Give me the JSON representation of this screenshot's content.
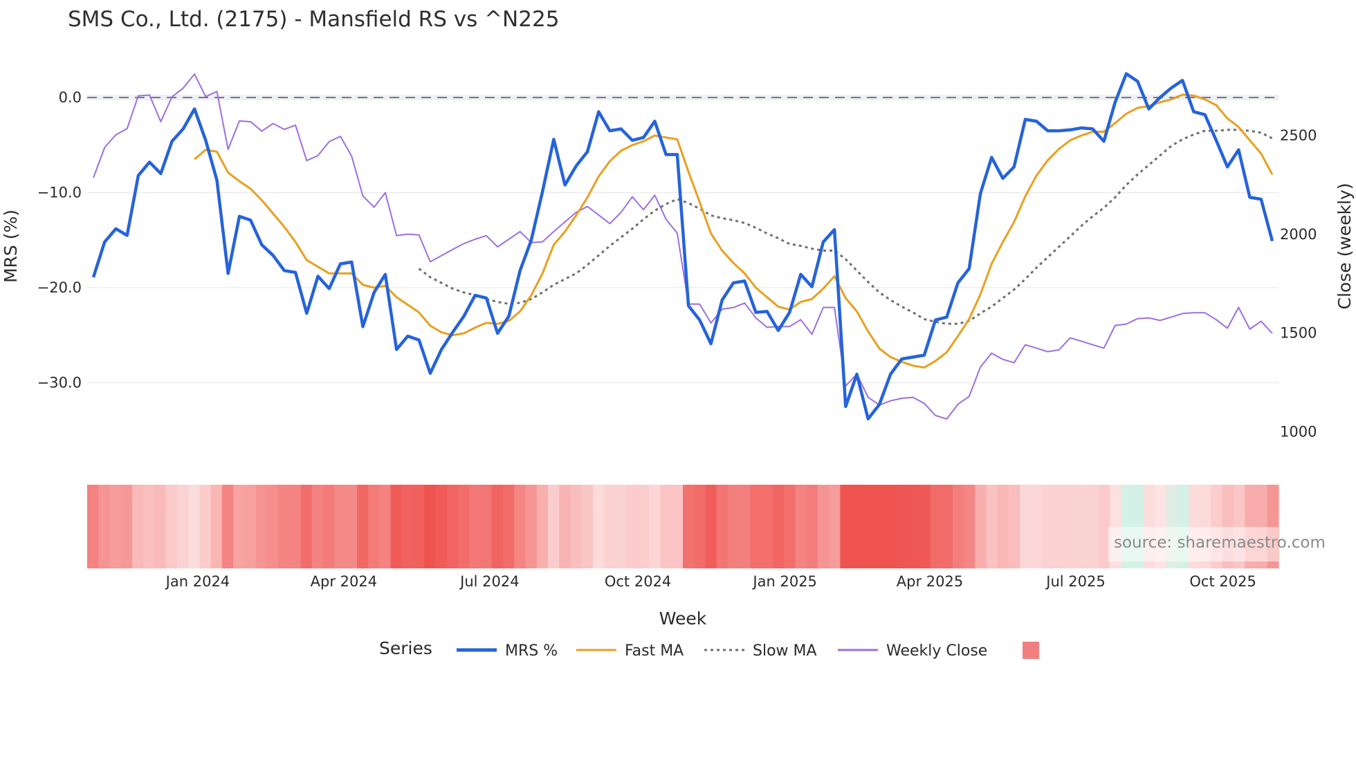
{
  "chart_data": {
    "type": "line",
    "title": "SMS Co., Ltd. (2175) - Mansfield RS vs ^N225",
    "xlabel": "Week",
    "ylabel": "MRS (%)",
    "y2label": "Close (weekly)",
    "ylim": [
      -36,
      4.5
    ],
    "y2lim": [
      950,
      2900
    ],
    "yticks": [
      {
        "v": 0,
        "label": "0.0"
      },
      {
        "v": -10,
        "label": "−10.0"
      },
      {
        "v": -20,
        "label": "−20.0"
      },
      {
        "v": -30,
        "label": "−30.0"
      }
    ],
    "y2ticks": [
      {
        "v": 2500,
        "label": "2500"
      },
      {
        "v": 2000,
        "label": "2000"
      },
      {
        "v": 1500,
        "label": "1500"
      },
      {
        "v": 1000,
        "label": "1000"
      }
    ],
    "xticks": [
      {
        "week": 9.3,
        "label": "Jan 2024"
      },
      {
        "week": 22.3,
        "label": "Apr 2024"
      },
      {
        "week": 35.3,
        "label": "Jul 2024"
      },
      {
        "week": 48.5,
        "label": "Oct 2024"
      },
      {
        "week": 61.6,
        "label": "Jan 2025"
      },
      {
        "week": 74.5,
        "label": "Apr 2025"
      },
      {
        "week": 87.5,
        "label": "Jul 2025"
      },
      {
        "week": 100.6,
        "label": "Oct 2025"
      }
    ],
    "reference_line": 0,
    "legend": {
      "title": "Series",
      "placement": "bottom"
    },
    "source": "source: sharemaestro.com",
    "series": [
      {
        "name": "MRS %",
        "color": "#2563d9",
        "style": "solid",
        "axis": "left",
        "start_week": 0,
        "values": [
          -18.9,
          -15.2,
          -13.8,
          -14.5,
          -8.2,
          -6.8,
          -8.0,
          -4.6,
          -3.3,
          -1.2,
          -4.5,
          -8.7,
          -18.5,
          -12.5,
          -12.9,
          -15.5,
          -16.6,
          -18.2,
          -18.4,
          -22.7,
          -18.8,
          -20.1,
          -17.5,
          -17.3,
          -24.1,
          -20.5,
          -18.6,
          -26.5,
          -25.1,
          -25.5,
          -29.0,
          -26.5,
          -24.7,
          -23.0,
          -20.8,
          -21.1,
          -24.8,
          -23.0,
          -18.2,
          -15.0,
          -9.9,
          -4.4,
          -9.2,
          -7.2,
          -5.7,
          -1.5,
          -3.5,
          -3.3,
          -4.5,
          -4.2,
          -2.5,
          -6.0,
          -6.0,
          -21.9,
          -23.4,
          -25.9,
          -21.3,
          -19.5,
          -19.3,
          -22.6,
          -22.5,
          -24.5,
          -22.6,
          -18.6,
          -19.9,
          -15.2,
          -13.9,
          -32.5,
          -29.1,
          -33.8,
          -32.3,
          -29.1,
          -27.5,
          -27.3,
          -27.1,
          -23.4,
          -23.1,
          -19.5,
          -18.0,
          -10.1,
          -6.3,
          -8.5,
          -7.3,
          -2.3,
          -2.5,
          -3.5,
          -3.5,
          -3.4,
          -3.2,
          -3.3,
          -4.6,
          -0.5,
          2.5,
          1.7,
          -1.2,
          0.0,
          1.0,
          1.8,
          -1.5,
          -1.8,
          -4.5,
          -7.3,
          -5.5,
          -10.5,
          -10.7,
          -15.1
        ]
      },
      {
        "name": "Fast MA",
        "color": "#e8a020",
        "style": "solid",
        "axis": "left",
        "start_week": 9,
        "values": [
          -6.5,
          -5.5,
          -5.7,
          -7.9,
          -8.8,
          -9.6,
          -10.8,
          -12.2,
          -13.6,
          -15.2,
          -17.1,
          -17.8,
          -18.5,
          -18.5,
          -18.5,
          -19.7,
          -20.0,
          -19.8,
          -21.0,
          -21.8,
          -22.6,
          -24.0,
          -24.7,
          -25.0,
          -24.8,
          -24.2,
          -23.7,
          -23.8,
          -23.5,
          -22.5,
          -20.8,
          -18.5,
          -15.5,
          -14.1,
          -12.4,
          -10.5,
          -8.3,
          -6.7,
          -5.6,
          -5.0,
          -4.6,
          -4.0,
          -4.2,
          -4.4,
          -7.8,
          -11.0,
          -14.3,
          -16.1,
          -17.4,
          -18.5,
          -20.0,
          -21.0,
          -22.0,
          -22.3,
          -21.5,
          -21.2,
          -20.1,
          -18.8,
          -21.1,
          -22.5,
          -24.6,
          -26.4,
          -27.3,
          -27.8,
          -28.2,
          -28.4,
          -27.7,
          -26.8,
          -25.1,
          -23.3,
          -20.7,
          -17.5,
          -15.2,
          -13.1,
          -10.4,
          -8.2,
          -6.6,
          -5.4,
          -4.5,
          -4.0,
          -3.6,
          -3.6,
          -2.7,
          -1.7,
          -1.1,
          -0.9,
          -0.5,
          -0.2,
          0.3,
          0.2,
          -0.2,
          -0.8,
          -2.2,
          -3.1,
          -4.5,
          -5.9,
          -8.1
        ]
      },
      {
        "name": "Slow MA",
        "color": "#6e6e6e",
        "style": "dot",
        "axis": "left",
        "start_week": 29,
        "values": [
          -18.0,
          -18.9,
          -19.5,
          -20.1,
          -20.5,
          -20.8,
          -21.2,
          -21.5,
          -21.7,
          -21.6,
          -21.2,
          -20.5,
          -19.7,
          -19.1,
          -18.5,
          -17.6,
          -16.6,
          -15.6,
          -14.7,
          -13.8,
          -12.8,
          -11.9,
          -11.2,
          -10.7,
          -11.1,
          -11.7,
          -12.4,
          -12.7,
          -12.9,
          -13.2,
          -13.7,
          -14.3,
          -14.8,
          -15.4,
          -15.6,
          -15.9,
          -16.1,
          -16.1,
          -17.0,
          -18.2,
          -19.4,
          -20.5,
          -21.3,
          -22.0,
          -22.6,
          -23.3,
          -23.6,
          -23.8,
          -23.8,
          -23.5,
          -22.7,
          -22.0,
          -21.1,
          -20.2,
          -19.1,
          -17.9,
          -16.8,
          -15.7,
          -14.6,
          -13.5,
          -12.5,
          -11.6,
          -10.5,
          -9.2,
          -8.1,
          -7.1,
          -6.1,
          -5.1,
          -4.4,
          -3.9,
          -3.5,
          -3.5,
          -3.4,
          -3.4,
          -3.5,
          -3.7,
          -4.3
        ]
      },
      {
        "name": "Weekly Close",
        "color": "#9b6fe0",
        "style": "solid",
        "axis": "right",
        "start_week": 0,
        "values": [
          2286,
          2439,
          2504,
          2535,
          2701,
          2705,
          2570,
          2696,
          2740,
          2811,
          2697,
          2723,
          2430,
          2574,
          2570,
          2522,
          2561,
          2531,
          2552,
          2373,
          2399,
          2469,
          2496,
          2395,
          2194,
          2137,
          2211,
          1993,
          2001,
          1997,
          1861,
          1892,
          1923,
          1953,
          1975,
          1993,
          1936,
          1975,
          2014,
          1958,
          1962,
          2014,
          2063,
          2111,
          2141,
          2098,
          2054,
          2111,
          2190,
          2124,
          2198,
          2076,
          2006,
          1647,
          1647,
          1551,
          1621,
          1629,
          1652,
          1577,
          1529,
          1533,
          1533,
          1568,
          1494,
          1630,
          1630,
          1232,
          1293,
          1175,
          1136,
          1157,
          1170,
          1175,
          1144,
          1083,
          1065,
          1140,
          1179,
          1328,
          1398,
          1367,
          1350,
          1441,
          1424,
          1406,
          1415,
          1476,
          1459,
          1441,
          1424,
          1538,
          1546,
          1573,
          1577,
          1564,
          1581,
          1599,
          1603,
          1603,
          1568,
          1525,
          1630,
          1520,
          1560,
          1499
        ]
      }
    ],
    "heatmap": {
      "based_on": "MRS %",
      "neg_color": "#ef5350",
      "zero_color": "#fde3e3",
      "pos_color": "#d3f1e6",
      "legend_swatch": "#f08080"
    }
  }
}
